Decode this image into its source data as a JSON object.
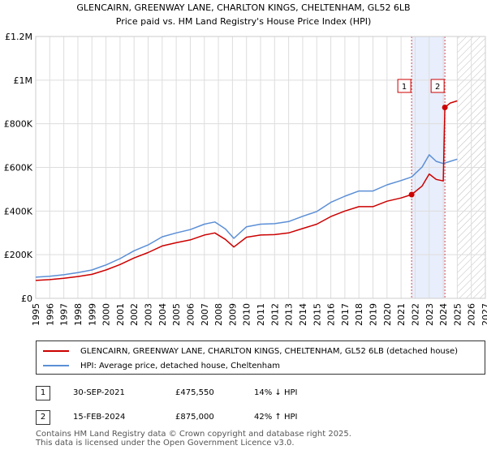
{
  "chart_data": {
    "type": "line",
    "title": "GLENCAIRN, GREENWAY LANE, CHARLTON KINGS, CHELTENHAM, GL52 6LB",
    "subtitle": "Price paid vs. HM Land Registry's House Price Index (HPI)",
    "xlabel": "",
    "ylabel": "",
    "xlim": [
      1995,
      2027
    ],
    "ylim": [
      0,
      1200000
    ],
    "x_ticks": [
      "1995",
      "1996",
      "1997",
      "1998",
      "1999",
      "2000",
      "2001",
      "2002",
      "2003",
      "2004",
      "2005",
      "2006",
      "2007",
      "2008",
      "2009",
      "2010",
      "2011",
      "2012",
      "2013",
      "2014",
      "2015",
      "2016",
      "2017",
      "2018",
      "2019",
      "2020",
      "2021",
      "2022",
      "2023",
      "2024",
      "2025",
      "2026",
      "2027"
    ],
    "y_ticks": [
      {
        "value": 0,
        "label": "£0"
      },
      {
        "value": 200000,
        "label": "£200K"
      },
      {
        "value": 400000,
        "label": "£400K"
      },
      {
        "value": 600000,
        "label": "£600K"
      },
      {
        "value": 800000,
        "label": "£800K"
      },
      {
        "value": 1000000,
        "label": "£1M"
      },
      {
        "value": 1200000,
        "label": "£1.2M"
      }
    ],
    "grid": true,
    "shaded_period": [
      2021.75,
      2024.12
    ],
    "hatched_from": 2025.0,
    "series": [
      {
        "name": "GLENCAIRN, GREENWAY LANE, CHARLTON KINGS, CHELTENHAM, GL52 6LB (detached house)",
        "color": "#cc0000",
        "x": [
          1995.0,
          1996.0,
          1997.0,
          1998.0,
          1999.0,
          2000.0,
          2001.0,
          2002.0,
          2003.0,
          2004.0,
          2005.0,
          2006.0,
          2007.0,
          2007.75,
          2008.5,
          2009.1,
          2010.0,
          2011.0,
          2012.0,
          2013.0,
          2014.0,
          2015.0,
          2016.0,
          2017.0,
          2018.0,
          2019.0,
          2020.0,
          2021.0,
          2021.75,
          2022.5,
          2023.0,
          2023.5,
          2024.0,
          2024.12,
          2024.5,
          2025.0
        ],
        "y": [
          82000,
          86000,
          92000,
          100000,
          110000,
          130000,
          155000,
          185000,
          210000,
          240000,
          255000,
          268000,
          290000,
          300000,
          270000,
          235000,
          280000,
          290000,
          292000,
          300000,
          320000,
          340000,
          375000,
          400000,
          420000,
          420000,
          445000,
          460000,
          475550,
          515000,
          570000,
          545000,
          538000,
          875000,
          895000,
          905000
        ]
      },
      {
        "name": "HPI: Average price, detached house, Cheltenham",
        "color": "#5b8fd6",
        "x": [
          1995.0,
          1996.0,
          1997.0,
          1998.0,
          1999.0,
          2000.0,
          2001.0,
          2002.0,
          2003.0,
          2004.0,
          2005.0,
          2006.0,
          2007.0,
          2007.75,
          2008.5,
          2009.1,
          2010.0,
          2011.0,
          2012.0,
          2013.0,
          2014.0,
          2015.0,
          2016.0,
          2017.0,
          2018.0,
          2019.0,
          2020.0,
          2021.0,
          2021.75,
          2022.5,
          2023.0,
          2023.5,
          2024.0,
          2024.5,
          2025.0
        ],
        "y": [
          97000,
          101000,
          108000,
          118000,
          130000,
          153000,
          182000,
          218000,
          245000,
          282000,
          300000,
          315000,
          340000,
          350000,
          318000,
          275000,
          328000,
          340000,
          342000,
          352000,
          376000,
          398000,
          440000,
          468000,
          492000,
          492000,
          520000,
          540000,
          556000,
          602000,
          658000,
          628000,
          618000,
          628000,
          638000
        ]
      }
    ],
    "annotations": [
      {
        "label": "1",
        "x": 2021.75,
        "y": 475550
      },
      {
        "label": "2",
        "x": 2024.12,
        "y": 875000
      }
    ]
  },
  "legend": {
    "items": [
      {
        "label": "GLENCAIRN, GREENWAY LANE, CHARLTON KINGS, CHELTENHAM, GL52 6LB (detached house)",
        "color": "#cc0000"
      },
      {
        "label": "HPI: Average price, detached house, Cheltenham",
        "color": "#5b8fd6"
      }
    ]
  },
  "transactions": [
    {
      "marker": "1",
      "date": "30-SEP-2021",
      "price": "£475,550",
      "hpi": "14% ↓ HPI"
    },
    {
      "marker": "2",
      "date": "15-FEB-2024",
      "price": "£875,000",
      "hpi": "42% ↑ HPI"
    }
  ],
  "footer": {
    "line1": "Contains HM Land Registry data © Crown copyright and database right 2025.",
    "line2": "This data is licensed under the Open Government Licence v3.0."
  }
}
